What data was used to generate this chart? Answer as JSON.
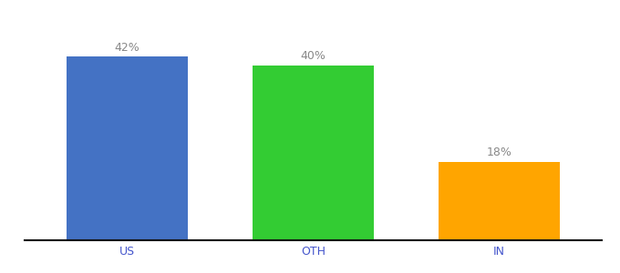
{
  "categories": [
    "US",
    "OTH",
    "IN"
  ],
  "values": [
    42,
    40,
    18
  ],
  "bar_colors": [
    "#4472c4",
    "#33cc33",
    "#ffa500"
  ],
  "labels": [
    "42%",
    "40%",
    "18%"
  ],
  "ylim": [
    0,
    50
  ],
  "bg_color": "#ffffff",
  "label_fontsize": 9,
  "tick_fontsize": 9,
  "tick_color": "#4455cc",
  "label_color": "#888888",
  "bar_width": 0.65,
  "xlim_left": -0.55,
  "xlim_right": 2.55
}
